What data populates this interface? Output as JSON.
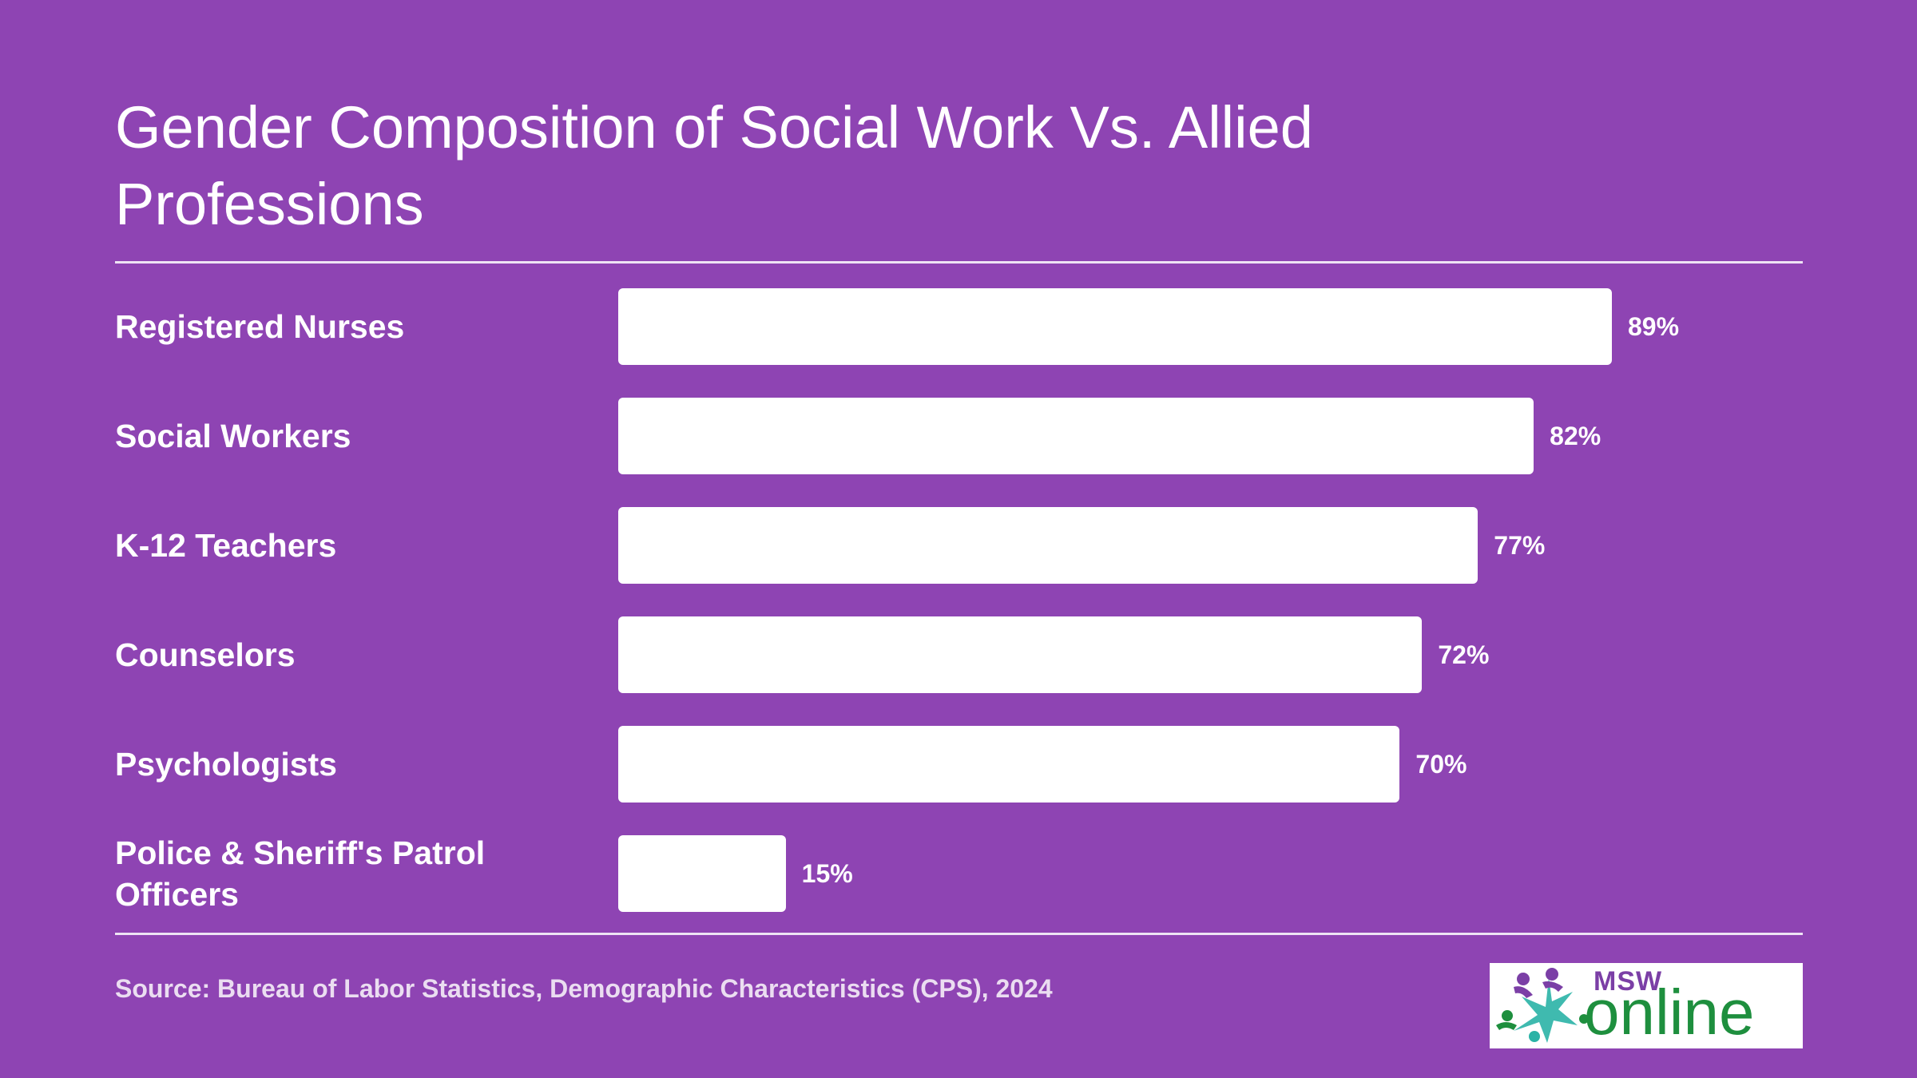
{
  "chart_data": {
    "type": "bar",
    "orientation": "horizontal",
    "title": "Gender Composition of Social Work Vs. Allied Professions",
    "categories": [
      "Registered Nurses",
      "Social Workers",
      "K-12 Teachers",
      "Counselors",
      "Psychologists",
      "Police & Sheriff's Patrol Officers"
    ],
    "values": [
      89,
      82,
      77,
      72,
      70,
      15
    ],
    "value_labels": [
      "89%",
      "82%",
      "77%",
      "72%",
      "70%",
      "15%"
    ],
    "xlim": [
      0,
      100
    ],
    "grid": false,
    "legend": "none",
    "colors": {
      "background": "#8e44b3",
      "bar": "#ffffff",
      "text": "#ffffff"
    }
  },
  "source": "Source: Bureau of Labor Statistics, Demographic Characteristics (CPS), 2024",
  "logo": {
    "text_top": "MSW",
    "text_main": "online",
    "icon": "people-star-logo",
    "colors": {
      "green": "#1e8f3e",
      "purple": "#7b3fa6",
      "teal": "#2ab3a6"
    }
  }
}
